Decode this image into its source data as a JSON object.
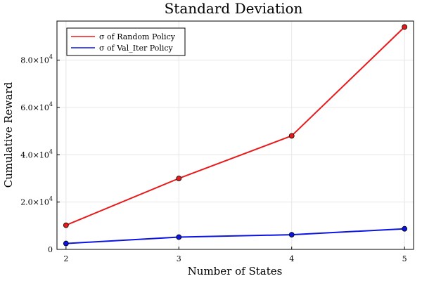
{
  "chart_data": {
    "type": "line",
    "title": "Standard Deviation",
    "xlabel": "Number of States",
    "ylabel": "Cumulative Reward",
    "x": [
      2,
      3,
      4,
      5
    ],
    "xlim": [
      1.92,
      5.08
    ],
    "ylim": [
      0,
      96500
    ],
    "x_ticks": [
      {
        "value": 2,
        "label": "2"
      },
      {
        "value": 3,
        "label": "3"
      },
      {
        "value": 4,
        "label": "4"
      },
      {
        "value": 5,
        "label": "5"
      }
    ],
    "y_ticks": [
      {
        "value": 0,
        "label": "0"
      },
      {
        "value": 20000,
        "mant": "2.0×10",
        "exp": "4"
      },
      {
        "value": 40000,
        "mant": "4.0×10",
        "exp": "4"
      },
      {
        "value": 60000,
        "mant": "6.0×10",
        "exp": "4"
      },
      {
        "value": 80000,
        "mant": "8.0×10",
        "exp": "4"
      }
    ],
    "grid": true,
    "legend_position": "top-left",
    "series": [
      {
        "name": "σ of Random Policy",
        "color": "#e8191a",
        "values": [
          10200,
          30000,
          48000,
          94000
        ]
      },
      {
        "name": "σ of Val_Iter Policy",
        "color": "#0b14e0",
        "values": [
          2500,
          5200,
          6200,
          8700
        ]
      }
    ]
  }
}
